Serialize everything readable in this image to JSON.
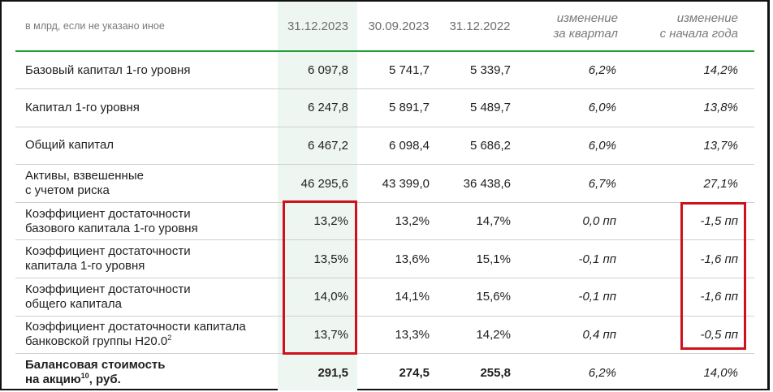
{
  "header": {
    "units_note": "в млрд, если не указано иное",
    "col_dec2023": "31.12.2023",
    "col_sep2023": "30.09.2023",
    "col_dec2022": "31.12.2022",
    "chg_q_line1": "изменение",
    "chg_q_line2": "за квартал",
    "chg_y_line1": "изменение",
    "chg_y_line2": "с начала года"
  },
  "rows": [
    {
      "name_l1": "Базовый капитал 1-го уровня",
      "name_l2": "",
      "name_sup": "",
      "dec2023": "6 097,8",
      "sep2023": "5 741,7",
      "dec2022": "5 339,7",
      "chg_q": "6,2%",
      "chg_y": "14,2%"
    },
    {
      "name_l1": "Капитал 1-го уровня",
      "name_l2": "",
      "name_sup": "",
      "dec2023": "6 247,8",
      "sep2023": "5 891,7",
      "dec2022": "5 489,7",
      "chg_q": "6,0%",
      "chg_y": "13,8%"
    },
    {
      "name_l1": "Общий капитал",
      "name_l2": "",
      "name_sup": "",
      "dec2023": "6 467,2",
      "sep2023": "6 098,4",
      "dec2022": "5 686,2",
      "chg_q": "6,0%",
      "chg_y": "13,7%"
    },
    {
      "name_l1": "Активы, взвешенные",
      "name_l2": "с учетом риска",
      "name_sup": "",
      "dec2023": "46 295,6",
      "sep2023": "43 399,0",
      "dec2022": "36 438,6",
      "chg_q": "6,7%",
      "chg_y": "27,1%"
    },
    {
      "name_l1": "Коэффициент достаточности",
      "name_l2": "базового капитала 1-го уровня",
      "name_sup": "",
      "dec2023": "13,2%",
      "sep2023": "13,2%",
      "dec2022": "14,7%",
      "chg_q": "0,0 пп",
      "chg_y": "-1,5 пп"
    },
    {
      "name_l1": "Коэффициент достаточности",
      "name_l2": "капитала 1-го уровня",
      "name_sup": "",
      "dec2023": "13,5%",
      "sep2023": "13,6%",
      "dec2022": "15,1%",
      "chg_q": "-0,1 пп",
      "chg_y": "-1,6 пп"
    },
    {
      "name_l1": "Коэффициент достаточности",
      "name_l2": "общего капитала",
      "name_sup": "",
      "dec2023": "14,0%",
      "sep2023": "14,1%",
      "dec2022": "15,6%",
      "chg_q": "-0,1 пп",
      "chg_y": "-1,6 пп"
    },
    {
      "name_l1": "Коэффициент достаточности капитала",
      "name_l2": "банковской группы Н20.0",
      "name_sup": "2",
      "dec2023": "13,7%",
      "sep2023": "13,3%",
      "dec2022": "14,2%",
      "chg_q": "0,4 пп",
      "chg_y": "-0,5 пп"
    }
  ],
  "last_row": {
    "name_l1": "Балансовая стоимость",
    "name_l2_pre": "на акцию",
    "name_sup": "10",
    "name_l2_post": ", руб.",
    "dec2023": "291,5",
    "sep2023": "274,5",
    "dec2022": "255,8",
    "chg_q": "6,2%",
    "chg_y": "14,0%"
  },
  "colors": {
    "accent_green": "#21a038",
    "highlight_box": "#d0111b",
    "column_tint": "#eef6f2"
  }
}
